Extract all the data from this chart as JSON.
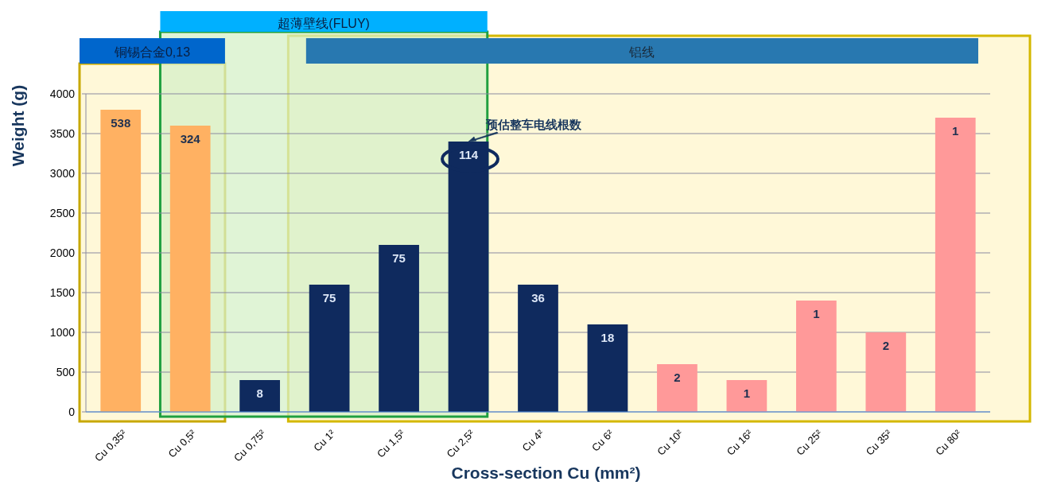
{
  "chart_data": {
    "type": "bar",
    "xlabel": "Cross-section Cu (mm²)",
    "ylabel": "Weight (g)",
    "categories": [
      "Cu 0,35²",
      "Cu 0,5²",
      "Cu 0,75²",
      "Cu 1²",
      "Cu 1,5²",
      "Cu 2,5²",
      "Cu 4²",
      "Cu 6²",
      "Cu 10²",
      "Cu 16²",
      "Cu 25²",
      "Cu 35²",
      "Cu 80²"
    ],
    "values": [
      3800,
      3600,
      400,
      1600,
      2100,
      3400,
      1600,
      1100,
      600,
      400,
      1400,
      1000,
      3700
    ],
    "colors": [
      "#ffb162",
      "#ffb162",
      "#0f2a5e",
      "#0f2a5e",
      "#0f2a5e",
      "#0f2a5e",
      "#0f2a5e",
      "#0f2a5e",
      "#ff9999",
      "#ff9999",
      "#ff9999",
      "#ff9999",
      "#ff9999"
    ],
    "ylim": [
      0,
      4000
    ],
    "yticks": [
      0,
      500,
      1000,
      1500,
      2000,
      2500,
      3000,
      3500,
      4000
    ],
    "grid": "y",
    "bands": [
      {
        "axis": "x",
        "from": "Cu 1²",
        "to": "Cu 80²",
        "label": "铝线",
        "color": "#fff8d8"
      },
      {
        "axis": "x",
        "from": "Cu 0,35²",
        "to": "Cu 0,5²",
        "label": "铜锡合金0,13",
        "color": "#fff8d8"
      },
      {
        "axis": "x",
        "from": "Cu 0,5²",
        "to": "Cu 2,5²",
        "label": "超薄壁线(FLUY)",
        "color": "#d6f0c8"
      }
    ],
    "annotations": [
      {
        "text": "预估整车电线根数",
        "x": "Cu 2,5²",
        "y": 3400
      },
      {
        "text": "538",
        "x": "Cu 0,35²",
        "y": 3800
      },
      {
        "text": "324",
        "x": "Cu 0,5²",
        "y": 3600
      },
      {
        "text": "8",
        "x": "Cu 0,75²",
        "y": 400
      },
      {
        "text": "75",
        "x": "Cu 1²",
        "y": 1600
      },
      {
        "text": "75",
        "x": "Cu 1,5²",
        "y": 2100
      },
      {
        "text": "114",
        "x": "Cu 2,5²",
        "y": 3400
      },
      {
        "text": "36",
        "x": "Cu 4²",
        "y": 1600
      },
      {
        "text": "18",
        "x": "Cu 6²",
        "y": 1100
      },
      {
        "text": "2",
        "x": "Cu 10²",
        "y": 600
      },
      {
        "text": "1",
        "x": "Cu 16²",
        "y": 400
      },
      {
        "text": "1",
        "x": "Cu 25²",
        "y": 1400
      },
      {
        "text": "2",
        "x": "Cu 35²",
        "y": 1000
      },
      {
        "text": "1",
        "x": "Cu 80²",
        "y": 3700
      }
    ]
  }
}
